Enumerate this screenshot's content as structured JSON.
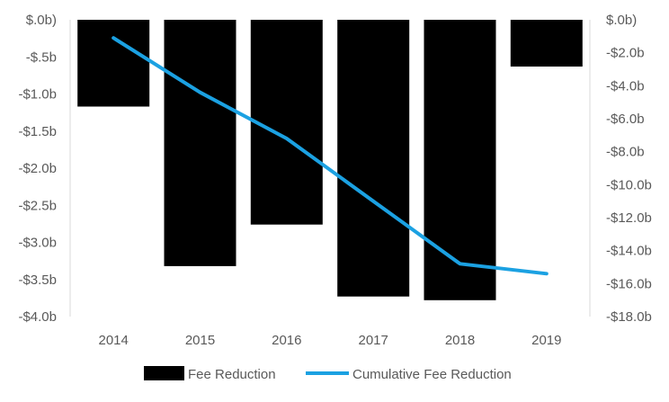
{
  "chart_data": {
    "type": "bar",
    "categories": [
      "2014",
      "2015",
      "2016",
      "2017",
      "2018",
      "2019"
    ],
    "series": [
      {
        "name": "Fee Reduction",
        "type": "bar",
        "axis": "left",
        "color": "#000000",
        "values": [
          -1.17,
          -3.32,
          -2.76,
          -3.73,
          -3.78,
          -0.63
        ]
      },
      {
        "name": "Cumulative Fee Reduction",
        "type": "line",
        "axis": "right",
        "color": "#1BA1E2",
        "values": [
          -1.1,
          -4.4,
          -7.2,
          -11.0,
          -14.8,
          -15.4
        ]
      }
    ],
    "left_axis": {
      "ylim": [
        -4.0,
        0.0
      ],
      "ticks": [
        0.0,
        -0.5,
        -1.0,
        -1.5,
        -2.0,
        -2.5,
        -3.0,
        -3.5,
        -4.0
      ],
      "tick_labels": [
        "$.0b)",
        "-$.5b",
        "-$1.0b",
        "-$1.5b",
        "-$2.0b",
        "-$2.5b",
        "-$3.0b",
        "-$3.5b",
        "-$4.0b"
      ]
    },
    "right_axis": {
      "ylim": [
        -18.0,
        0.0
      ],
      "ticks": [
        0.0,
        -2.0,
        -4.0,
        -6.0,
        -8.0,
        -10.0,
        -12.0,
        -14.0,
        -16.0,
        -18.0
      ],
      "tick_labels": [
        "$.0b)",
        "-$2.0b",
        "-$4.0b",
        "-$6.0b",
        "-$8.0b",
        "-$10.0b",
        "-$12.0b",
        "-$14.0b",
        "-$16.0b",
        "-$18.0b"
      ]
    },
    "title": "",
    "xlabel": "",
    "ylabel": "",
    "grid": false,
    "legend": {
      "position": "bottom",
      "items": [
        "Fee Reduction",
        "Cumulative Fee Reduction"
      ]
    }
  }
}
